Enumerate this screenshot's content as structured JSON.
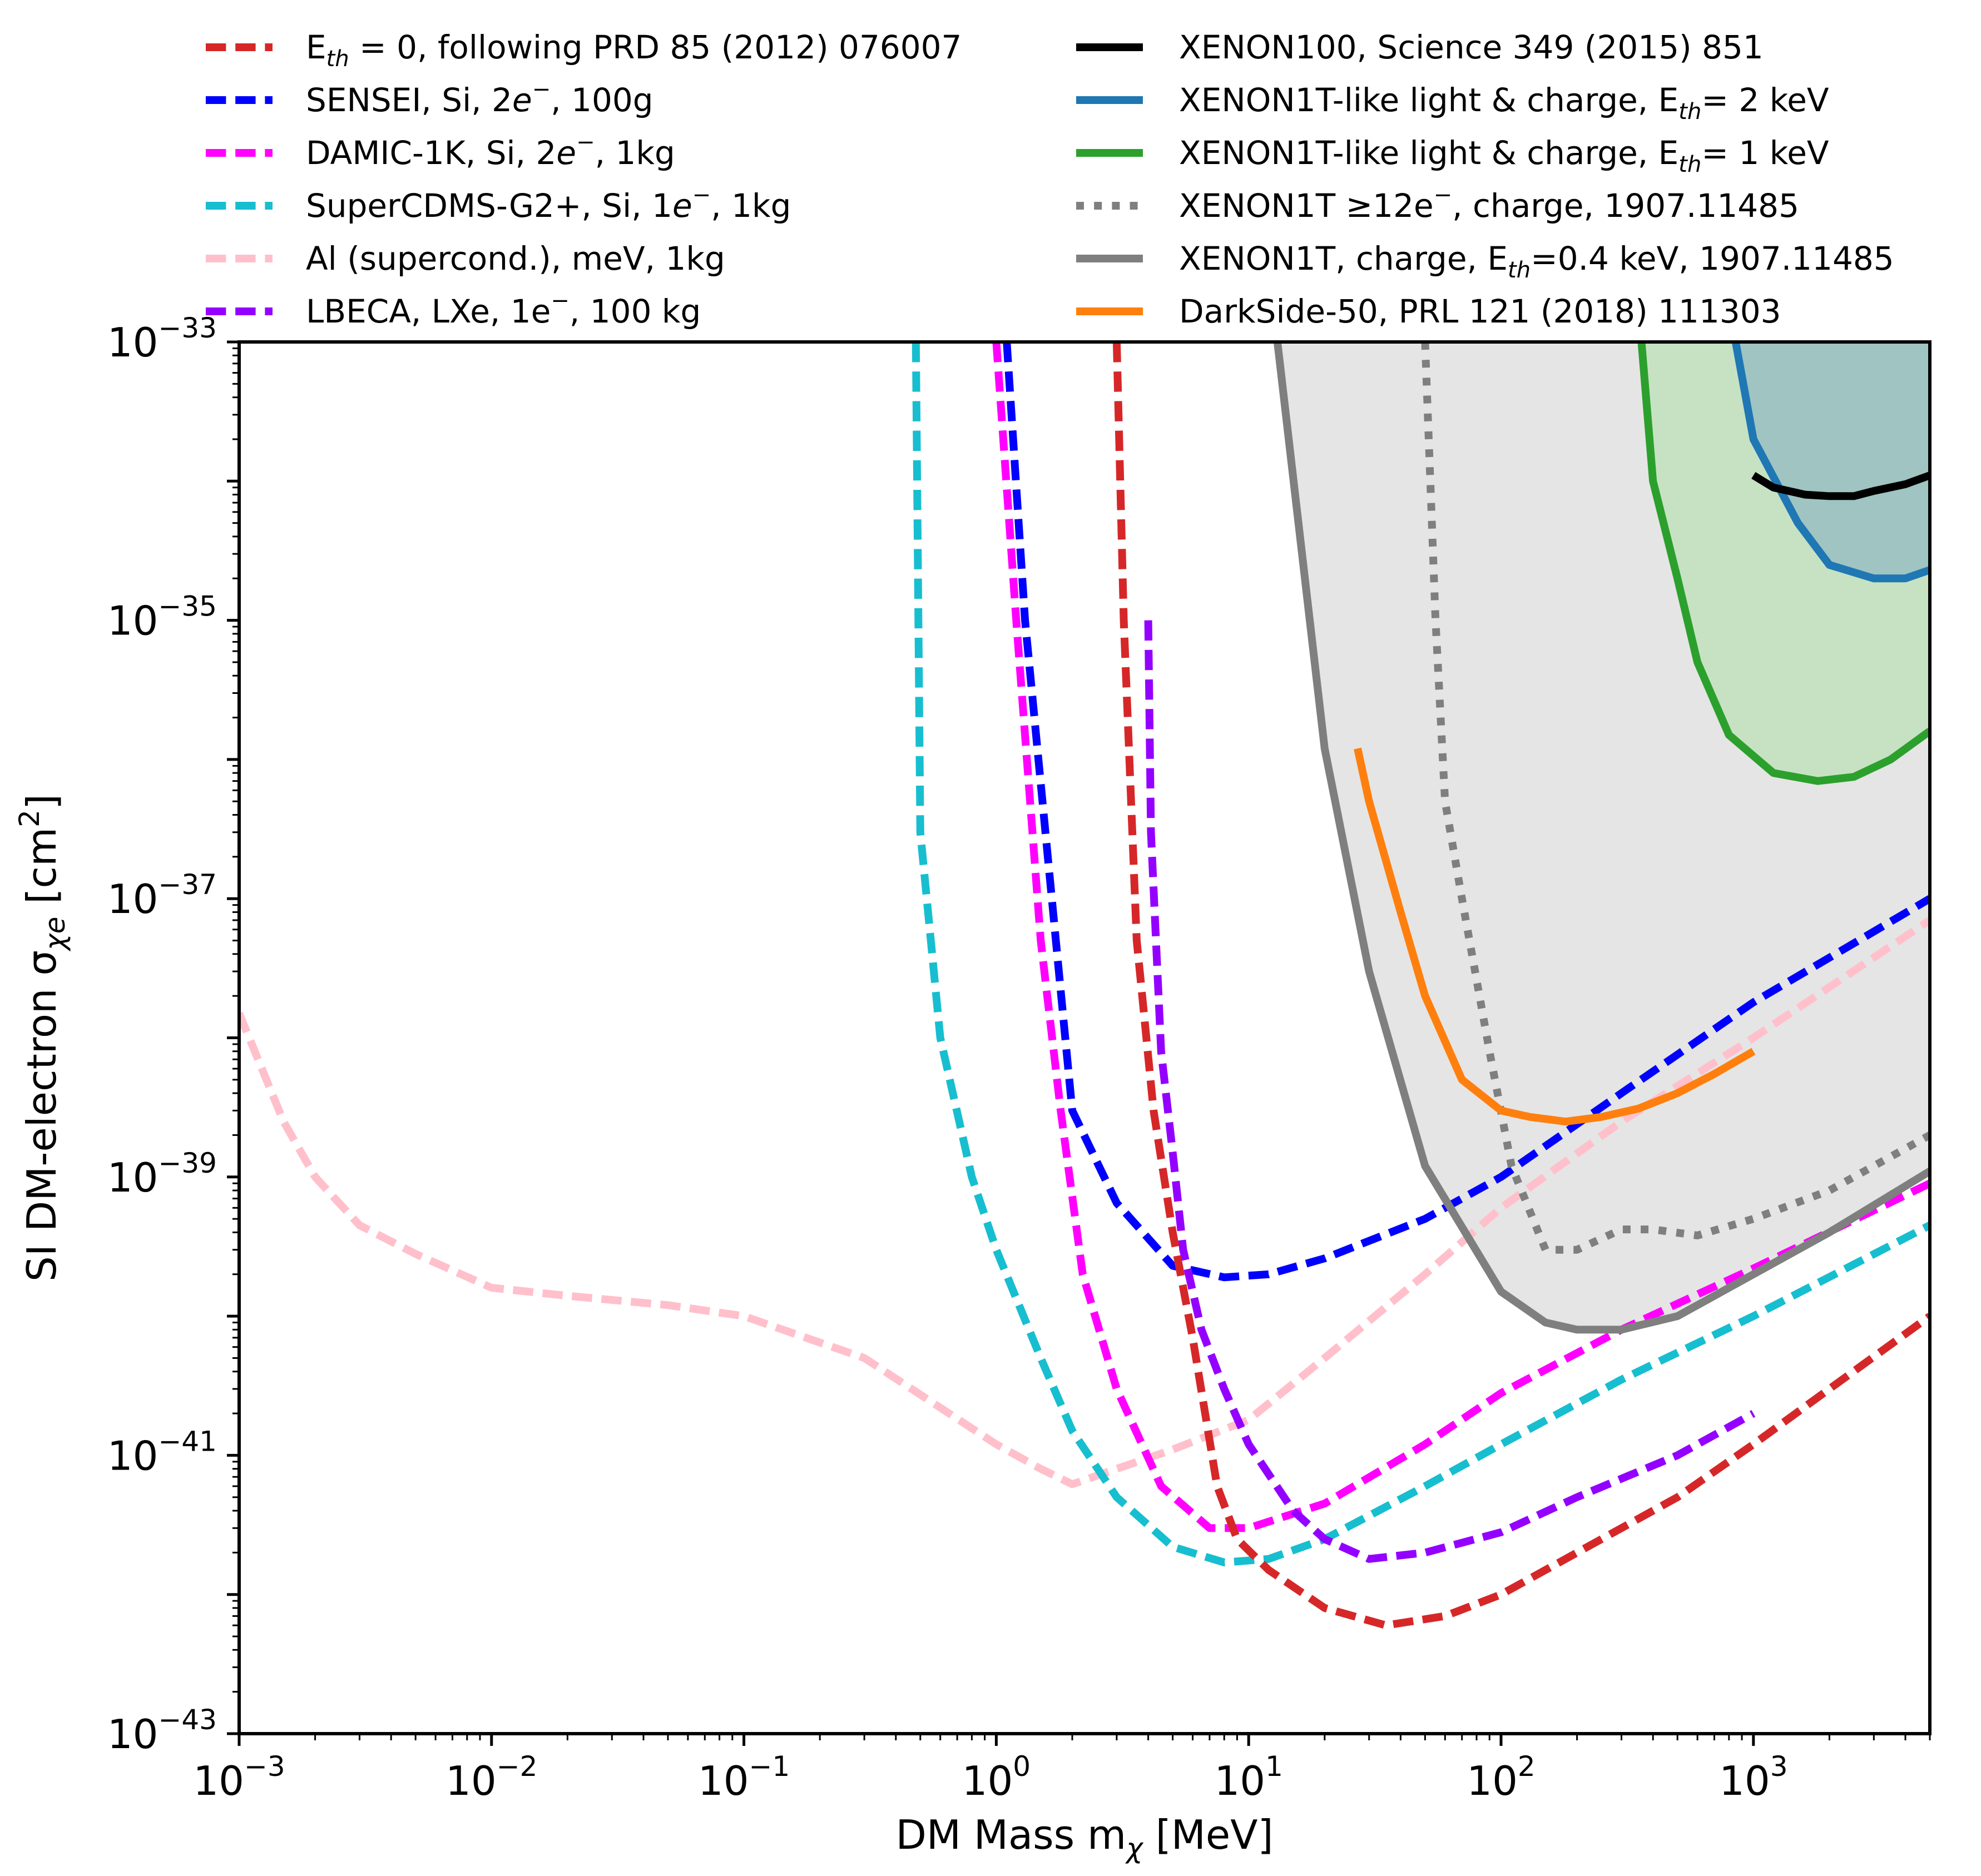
{
  "chart_data": {
    "type": "line",
    "xscale": "log",
    "yscale": "log",
    "xlim": [
      0.001,
      5000
    ],
    "ylim": [
      1e-43,
      1e-33
    ],
    "xlabel": "DM Mass m",
    "xlabel_sub": "χ",
    "xlabel_unit": "[MeV]",
    "ylabel": "SI DM-electron σ",
    "ylabel_sub": "χe",
    "ylabel_unit": "[cm",
    "ylabel_unit_sup": "2",
    "ylabel_unit_end": "]",
    "x_ticks": [
      {
        "value": 0.001,
        "base": "10",
        "exp": "−3"
      },
      {
        "value": 0.01,
        "base": "10",
        "exp": "−2"
      },
      {
        "value": 0.1,
        "base": "10",
        "exp": "−1"
      },
      {
        "value": 1,
        "base": "10",
        "exp": "0"
      },
      {
        "value": 10,
        "base": "10",
        "exp": "1"
      },
      {
        "value": 100,
        "base": "10",
        "exp": "2"
      },
      {
        "value": 1000,
        "base": "10",
        "exp": "3"
      }
    ],
    "y_ticks": [
      {
        "value": 1e-33,
        "base": "10",
        "exp": "−33"
      },
      {
        "value": 1e-35,
        "base": "10",
        "exp": "−35"
      },
      {
        "value": 1e-37,
        "base": "10",
        "exp": "−37"
      },
      {
        "value": 1e-39,
        "base": "10",
        "exp": "−39"
      },
      {
        "value": 1e-41,
        "base": "10",
        "exp": "−41"
      },
      {
        "value": 1e-43,
        "base": "10",
        "exp": "−43"
      }
    ],
    "regions": [
      {
        "name": "XENON1T charge 0.4 keV excluded",
        "color": "#e5e5e5",
        "stroke": "#7f7f7f",
        "x": [
          13,
          20,
          30,
          50,
          100,
          150,
          200,
          300,
          500,
          1000,
          2000,
          5000
        ],
        "y": [
          1e-33,
          1.2e-36,
          3e-38,
          1.2e-39,
          1.5e-40,
          9e-41,
          8e-41,
          8e-41,
          1e-40,
          2e-40,
          4e-40,
          1.1e-39
        ]
      },
      {
        "name": "XENON1T-like 1 keV excluded",
        "color": "#c6e2c3",
        "stroke": "#2ca02c",
        "x": [
          360,
          400,
          500,
          600,
          800,
          1200,
          1800,
          2500,
          3500,
          5000
        ],
        "y": [
          1e-33,
          1e-34,
          2e-35,
          5e-36,
          1.5e-36,
          8e-37,
          7e-37,
          7.5e-37,
          1e-36,
          1.6e-36
        ]
      },
      {
        "name": "XENON1T-like 2 keV excluded",
        "color": "#9fc4c2",
        "stroke": "#1f77b4",
        "x": [
          850,
          1000,
          1500,
          2000,
          3000,
          4000,
          5000
        ],
        "y": [
          1e-33,
          2e-34,
          5e-35,
          2.5e-35,
          2e-35,
          2e-35,
          2.3e-35
        ]
      }
    ],
    "series": [
      {
        "name": "E_th=0 PRD85",
        "color": "#d62728",
        "dash": "dashed",
        "width": 14,
        "x": [
          3.0,
          3.2,
          3.6,
          4.2,
          5.0,
          6.0,
          7.5,
          9.0,
          12,
          20,
          35,
          60,
          100,
          200,
          500,
          1000,
          2000,
          5000
        ],
        "y": [
          1e-33,
          1e-35,
          5e-38,
          3e-39,
          4e-40,
          7e-41,
          6e-42,
          2.5e-42,
          1.5e-42,
          8e-43,
          6e-43,
          7e-43,
          1e-42,
          2e-42,
          5e-42,
          1.2e-41,
          3e-41,
          1e-40
        ]
      },
      {
        "name": "SENSEI",
        "color": "#0000ff",
        "dash": "dashed",
        "width": 14,
        "x": [
          1.1,
          1.3,
          1.6,
          2.0,
          3.0,
          5.0,
          8.0,
          12,
          20,
          50,
          100,
          300,
          1000,
          5000
        ],
        "y": [
          1e-33,
          1e-35,
          2e-37,
          3e-39,
          6.5e-40,
          2.3e-40,
          1.9e-40,
          2e-40,
          2.6e-40,
          5e-40,
          1e-39,
          4e-39,
          1.8e-38,
          1e-37
        ]
      },
      {
        "name": "DAMIC-1K",
        "color": "#ff00ff",
        "dash": "dashed",
        "width": 14,
        "x": [
          1.0,
          1.2,
          1.5,
          1.8,
          2.2,
          3.0,
          4.5,
          7.0,
          10,
          20,
          50,
          100,
          300,
          1000,
          5000
        ],
        "y": [
          1e-33,
          1e-35,
          5e-38,
          3e-39,
          2e-40,
          3e-41,
          6e-42,
          3e-42,
          3e-42,
          4.5e-42,
          1.2e-41,
          2.8e-41,
          8e-41,
          2.2e-40,
          9e-40
        ]
      },
      {
        "name": "SuperCDMS-G2+",
        "color": "#17becf",
        "dash": "dashed",
        "width": 14,
        "x": [
          0.48,
          0.5,
          0.6,
          0.8,
          1.0,
          1.5,
          2.0,
          3.0,
          5.0,
          8.0,
          12,
          20,
          50,
          100,
          300,
          1000,
          5000
        ],
        "y": [
          1e-33,
          3e-37,
          1e-38,
          1e-39,
          3e-40,
          5e-41,
          1.5e-41,
          5e-42,
          2.2e-42,
          1.7e-42,
          1.8e-42,
          2.5e-42,
          6e-42,
          1.2e-41,
          3.5e-41,
          1e-40,
          4.5e-40
        ]
      },
      {
        "name": "Al supercond",
        "color": "#ffc0cb",
        "dash": "dashed",
        "width": 14,
        "x": [
          0.001,
          0.0015,
          0.002,
          0.003,
          0.005,
          0.01,
          0.02,
          0.05,
          0.1,
          0.3,
          0.6,
          1.0,
          1.5,
          2.0,
          3.0,
          5.0,
          10,
          20,
          50,
          100,
          300,
          1000,
          5000
        ],
        "y": [
          1.5e-38,
          2.5e-39,
          1e-39,
          4.5e-40,
          2.8e-40,
          1.6e-40,
          1.4e-40,
          1.2e-40,
          1e-40,
          5e-41,
          2.2e-41,
          1.2e-41,
          8e-42,
          6.2e-42,
          8e-42,
          1.1e-41,
          1.8e-41,
          5e-41,
          2e-40,
          6e-40,
          2.5e-39,
          1e-38,
          7e-38
        ]
      },
      {
        "name": "LBECA",
        "color": "#9400ff",
        "dash": "dashed",
        "width": 14,
        "x": [
          4.0,
          4.1,
          4.5,
          5.0,
          5.5,
          6.5,
          8.0,
          10,
          15,
          20,
          30,
          50,
          100,
          200,
          500,
          1000
        ],
        "y": [
          1e-35,
          3e-37,
          8e-39,
          1.5e-39,
          3e-40,
          8e-41,
          3e-41,
          1.2e-41,
          4e-42,
          2.5e-42,
          1.8e-42,
          2e-42,
          2.8e-42,
          5e-42,
          1e-41,
          2e-41
        ]
      },
      {
        "name": "XENON100",
        "color": "#000000",
        "dash": "solid",
        "width": 14,
        "x": [
          1000,
          1200,
          1600,
          2000,
          2500,
          3000,
          4000,
          5000
        ],
        "y": [
          1.1e-34,
          9e-35,
          8e-35,
          7.8e-35,
          7.8e-35,
          8.5e-35,
          9.5e-35,
          1.1e-34
        ]
      },
      {
        "name": "XENON1T-like 2 keV",
        "color": "#1f77b4",
        "dash": "solid",
        "width": 14,
        "x": [
          850,
          1000,
          1500,
          2000,
          3000,
          4000,
          5000
        ],
        "y": [
          1e-33,
          2e-34,
          5e-35,
          2.5e-35,
          2e-35,
          2e-35,
          2.3e-35
        ]
      },
      {
        "name": "XENON1T-like 1 keV",
        "color": "#2ca02c",
        "dash": "solid",
        "width": 14,
        "x": [
          360,
          400,
          500,
          600,
          800,
          1200,
          1800,
          2500,
          3500,
          5000
        ],
        "y": [
          1e-33,
          1e-34,
          2e-35,
          5e-36,
          1.5e-36,
          8e-37,
          7e-37,
          7.5e-37,
          1e-36,
          1.6e-36
        ]
      },
      {
        "name": "XENON1T >=12e charge",
        "color": "#7f7f7f",
        "dash": "dotted",
        "width": 14,
        "x": [
          50,
          55,
          60,
          70,
          90,
          110,
          150,
          200,
          300,
          400,
          600,
          1000,
          2000,
          5000
        ],
        "y": [
          1e-33,
          1e-35,
          5e-37,
          1e-37,
          8e-39,
          1.2e-39,
          3e-40,
          3e-40,
          4.2e-40,
          4.2e-40,
          3.8e-40,
          5e-40,
          8e-40,
          2e-39
        ]
      },
      {
        "name": "XENON1T charge 0.4 keV",
        "color": "#7f7f7f",
        "dash": "solid",
        "width": 14,
        "x": [
          13,
          20,
          30,
          50,
          100,
          150,
          200,
          300,
          500,
          1000,
          2000,
          5000
        ],
        "y": [
          1e-33,
          1.2e-36,
          3e-38,
          1.2e-39,
          1.5e-40,
          9e-41,
          8e-41,
          8e-41,
          1e-40,
          2e-40,
          4e-40,
          1.1e-39
        ]
      },
      {
        "name": "DarkSide-50",
        "color": "#ff7f0e",
        "dash": "solid",
        "width": 14,
        "x": [
          27,
          30,
          40,
          50,
          70,
          100,
          130,
          180,
          250,
          350,
          500,
          700,
          1000
        ],
        "y": [
          1.2e-36,
          5e-37,
          8e-38,
          2e-38,
          5e-39,
          3e-39,
          2.7e-39,
          2.5e-39,
          2.7e-39,
          3.1e-39,
          4e-39,
          5.5e-39,
          8e-39
        ]
      }
    ],
    "legend": {
      "placement": "top, two columns above plot",
      "left": [
        {
          "series": 0,
          "color": "#d62728",
          "dash": "dashed",
          "label_main": "E",
          "label_sub": "th",
          "label_rest": " = 0, following PRD 85 (2012) 076007"
        },
        {
          "series": 1,
          "color": "#0000ff",
          "dash": "dashed",
          "label_main": "SENSEI, Si, 2",
          "label_sub": "",
          "label_rest": "e",
          "label_sup": "−",
          "label_end": ", 100g"
        },
        {
          "series": 2,
          "color": "#ff00ff",
          "dash": "dashed",
          "label_main": "DAMIC-1K, Si, 2",
          "label_sub": "",
          "label_rest": "e",
          "label_sup": "−",
          "label_end": ", 1kg"
        },
        {
          "series": 3,
          "color": "#17becf",
          "dash": "dashed",
          "label_main": "SuperCDMS-G2+, Si, 1",
          "label_sub": "",
          "label_rest": "e",
          "label_sup": "−",
          "label_end": ", 1kg"
        },
        {
          "series": 4,
          "color": "#ffc0cb",
          "dash": "dashed",
          "label_main": "Al (supercond.), meV, 1kg",
          "label_sub": "",
          "label_rest": ""
        },
        {
          "series": 5,
          "color": "#9400ff",
          "dash": "dashed",
          "label_main": "LBECA, LXe, 1e",
          "label_sub": "",
          "label_rest": "",
          "label_sup": "−",
          "label_end": ", 100 kg"
        }
      ],
      "right": [
        {
          "series": 6,
          "color": "#000000",
          "dash": "solid",
          "label_main": "XENON100, Science 349 (2015) 851",
          "label_sub": "",
          "label_rest": ""
        },
        {
          "series": 7,
          "color": "#1f77b4",
          "dash": "solid",
          "label_main": "XENON1T-like light & charge, E",
          "label_sub": "th",
          "label_rest": "= 2 keV"
        },
        {
          "series": 8,
          "color": "#2ca02c",
          "dash": "solid",
          "label_main": "XENON1T-like light & charge, E",
          "label_sub": "th",
          "label_rest": "= 1 keV"
        },
        {
          "series": 9,
          "color": "#7f7f7f",
          "dash": "dotted",
          "label_main": "XENON1T ≥12e",
          "label_sub": "",
          "label_rest": "",
          "label_sup": "−",
          "label_end": ", charge, 1907.11485"
        },
        {
          "series": 10,
          "color": "#7f7f7f",
          "dash": "solid",
          "label_main": "XENON1T, charge, E",
          "label_sub": "th",
          "label_rest": "=0.4 keV, 1907.11485"
        },
        {
          "series": 11,
          "color": "#ff7f0e",
          "dash": "solid",
          "label_main": "DarkSide-50, PRL 121 (2018) 111303",
          "label_sub": "",
          "label_rest": ""
        }
      ]
    }
  }
}
